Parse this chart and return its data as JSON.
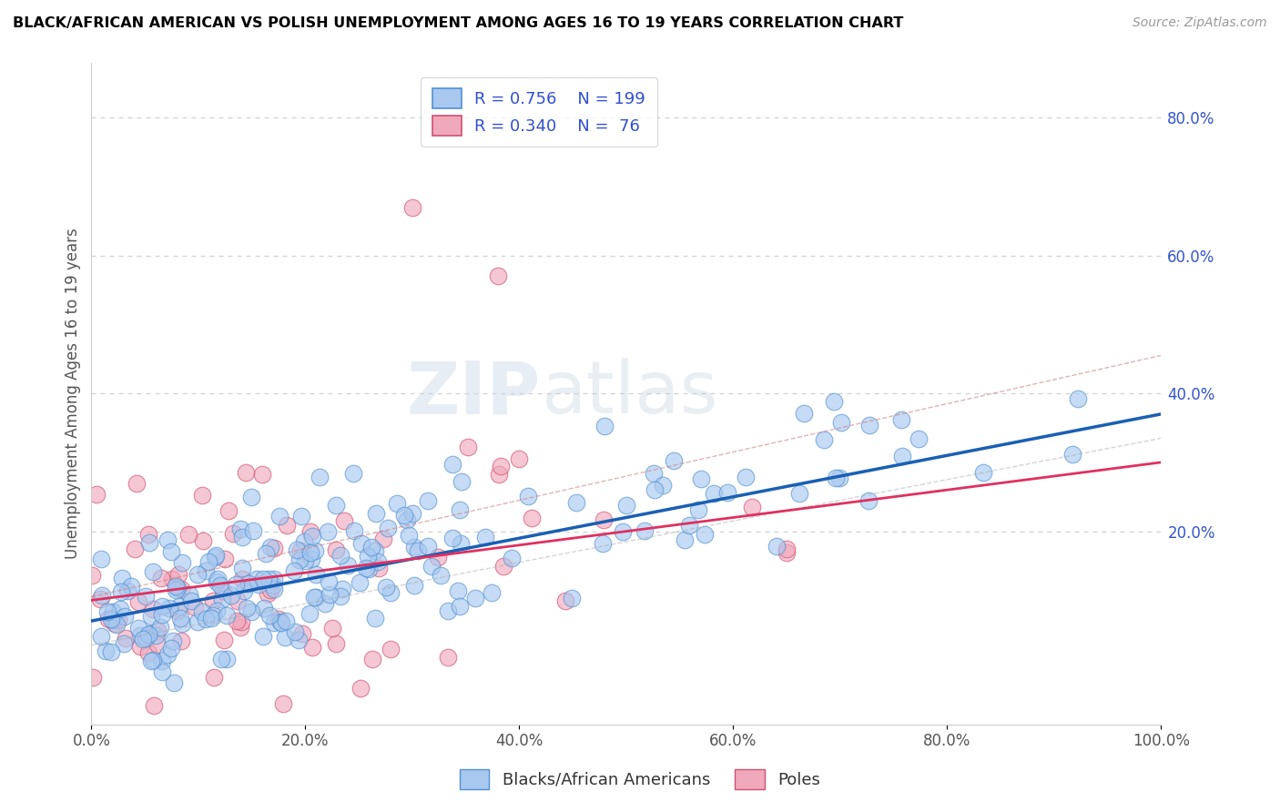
{
  "title": "BLACK/AFRICAN AMERICAN VS POLISH UNEMPLOYMENT AMONG AGES 16 TO 19 YEARS CORRELATION CHART",
  "source": "Source: ZipAtlas.com",
  "ylabel": "Unemployment Among Ages 16 to 19 years",
  "xlim": [
    0.0,
    1.0
  ],
  "ylim": [
    -0.08,
    0.88
  ],
  "xticks": [
    0.0,
    0.2,
    0.4,
    0.6,
    0.8,
    1.0
  ],
  "xticklabels": [
    "0.0%",
    "20.0%",
    "40.0%",
    "60.0%",
    "80.0%",
    "100.0%"
  ],
  "ytick_positions": [
    0.2,
    0.4,
    0.6,
    0.8
  ],
  "yticklabels": [
    "20.0%",
    "40.0%",
    "60.0%",
    "80.0%"
  ],
  "blue_R": 0.756,
  "blue_N": 199,
  "pink_R": 0.34,
  "pink_N": 76,
  "blue_color": "#a8c8f0",
  "blue_edge": "#5090d0",
  "pink_color": "#f0a8bc",
  "pink_edge": "#d05070",
  "blue_line_color": "#1a5fb4",
  "pink_line_color": "#e03060",
  "watermark_zip": "ZIP",
  "watermark_atlas": "atlas",
  "background_color": "#ffffff",
  "legend_color": "#3050d0",
  "grid_color": "#cccccc",
  "title_color": "#000000",
  "source_color": "#999999",
  "blue_slope": 0.3,
  "blue_intercept": 0.07,
  "pink_slope": 0.2,
  "pink_intercept": 0.1,
  "ytick_label_color": "#3355cc"
}
